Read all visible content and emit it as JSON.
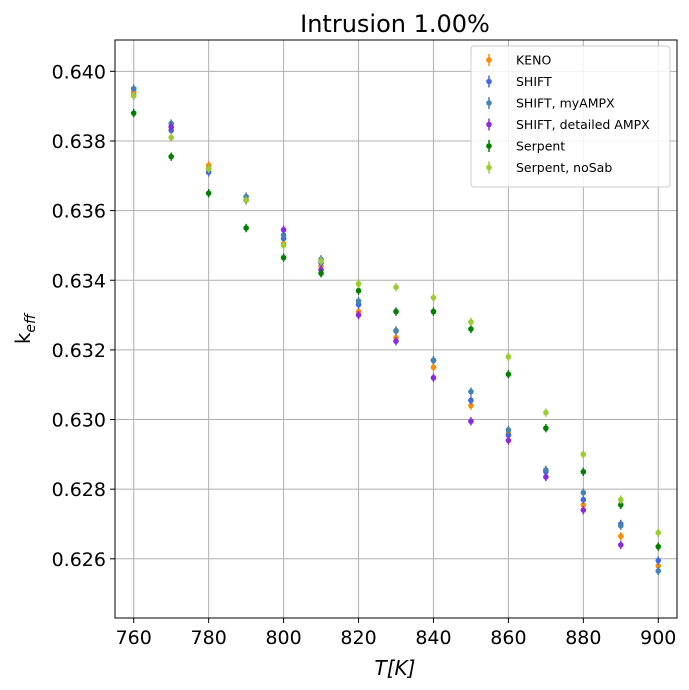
{
  "chart_data": {
    "type": "scatter",
    "title": "Intrusion  1.00%",
    "xlabel": "T[K]",
    "ylabel": "k_eff",
    "xlim": [
      755,
      905
    ],
    "ylim": [
      0.6243,
      0.6409
    ],
    "xticks": [
      760,
      780,
      800,
      820,
      840,
      860,
      880,
      900
    ],
    "yticks": [
      0.626,
      0.628,
      0.63,
      0.632,
      0.634,
      0.636,
      0.638,
      0.64
    ],
    "ytick_labels": [
      "0.626",
      "0.628",
      "0.630",
      "0.632",
      "0.634",
      "0.636",
      "0.638",
      "0.640"
    ],
    "grid": true,
    "legend_position": "top-right",
    "x": [
      760,
      770,
      780,
      790,
      800,
      810,
      820,
      830,
      840,
      850,
      860,
      870,
      880,
      890,
      900
    ],
    "series": [
      {
        "name": "KENO",
        "color": "#ff8c00",
        "values": [
          0.6394,
          0.6384,
          0.6373,
          0.6363,
          0.63505,
          0.6344,
          0.6331,
          0.63235,
          0.6315,
          0.6304,
          0.6296,
          0.62855,
          0.62755,
          0.62665,
          0.6258
        ],
        "err": 0.00012
      },
      {
        "name": "SHIFT",
        "color": "#4169e1",
        "values": [
          0.6395,
          0.6383,
          0.6371,
          0.6363,
          0.6352,
          0.6345,
          0.6333,
          0.63255,
          0.6317,
          0.63055,
          0.62955,
          0.6285,
          0.6277,
          0.627,
          0.62595
        ],
        "err": 0.00012
      },
      {
        "name": "SHIFT, myAMPX",
        "color": "#4682b4",
        "values": [
          0.6395,
          0.6385,
          0.6372,
          0.6364,
          0.6353,
          0.6346,
          0.6334,
          0.63255,
          0.6317,
          0.6308,
          0.6297,
          0.62855,
          0.6279,
          0.62695,
          0.62565
        ],
        "err": 0.00012
      },
      {
        "name": "SHIFT, detailed AMPX",
        "color": "#8a2be2",
        "values": [
          0.6393,
          0.6384,
          0.6372,
          0.6363,
          0.63545,
          0.6343,
          0.633,
          0.63225,
          0.6312,
          0.62995,
          0.6294,
          0.62835,
          0.6274,
          0.6264,
          null
        ],
        "err": 0.00012
      },
      {
        "name": "Serpent",
        "color": "#008000",
        "values": [
          0.6388,
          0.63755,
          0.6365,
          0.6355,
          0.63465,
          0.6342,
          0.6337,
          0.6331,
          0.6331,
          0.6326,
          0.6313,
          0.62975,
          0.6285,
          0.62755,
          0.62635
        ],
        "err": 0.00012
      },
      {
        "name": "Serpent, noSab",
        "color": "#9acd32",
        "values": [
          0.6393,
          0.6381,
          0.6372,
          0.6363,
          0.635,
          0.63455,
          0.6339,
          0.6338,
          0.6335,
          0.6328,
          0.6318,
          0.6302,
          0.629,
          0.6277,
          0.62675
        ],
        "err": 0.00012
      }
    ]
  }
}
